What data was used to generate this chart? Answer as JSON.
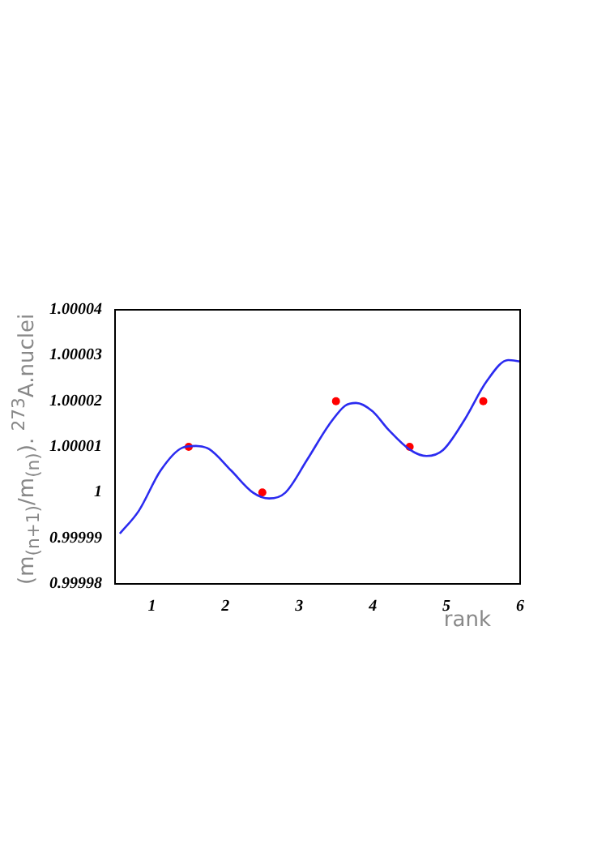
{
  "chart_data": {
    "type": "scatter",
    "xlabel": "rank",
    "ylabel": "(m$_{(n+1)}$/m$_{(n)}$). $^{273}$A.nuclei",
    "xlim": [
      0.5,
      6
    ],
    "xticks": [
      1,
      2,
      3,
      4,
      5,
      6
    ],
    "ylim": [
      0.99998,
      1.00004
    ],
    "yticks": [
      0.99998,
      0.99999,
      1,
      1.00001,
      1.00002,
      1.00003,
      1.00004
    ],
    "grid": false,
    "legend": false,
    "series": [
      {
        "type": "line",
        "color": "#2b2bf0",
        "marker": "none",
        "line_style": "solid",
        "x": [
          0.565,
          0.823,
          1.118,
          1.413,
          1.597,
          1.78,
          2.077,
          2.372,
          2.593,
          2.814,
          3.109,
          3.404,
          3.625,
          3.772,
          3.994,
          4.215,
          4.51,
          4.73,
          4.953,
          5.248,
          5.543,
          5.838,
          6.0
        ],
        "values": [
          0.999991,
          0.999996,
          1.0000048,
          1.0000098,
          1.0000102,
          1.0000095,
          1.0000048,
          1.0,
          0.9999987,
          1.0,
          1.0000072,
          1.0000148,
          1.000019,
          1.0000196,
          1.0000178,
          1.0000137,
          1.0000093,
          1.000008,
          1.0000093,
          1.000016,
          1.0000243,
          1.000029,
          1.0000287
        ]
      },
      {
        "type": "scatter",
        "color": "#ff0000",
        "marker": "circle",
        "x": [
          1.5,
          2.5,
          3.5,
          4.5,
          5.5
        ],
        "values": [
          1.00001,
          1.0,
          1.00002,
          1.00001,
          1.00002
        ]
      }
    ]
  }
}
